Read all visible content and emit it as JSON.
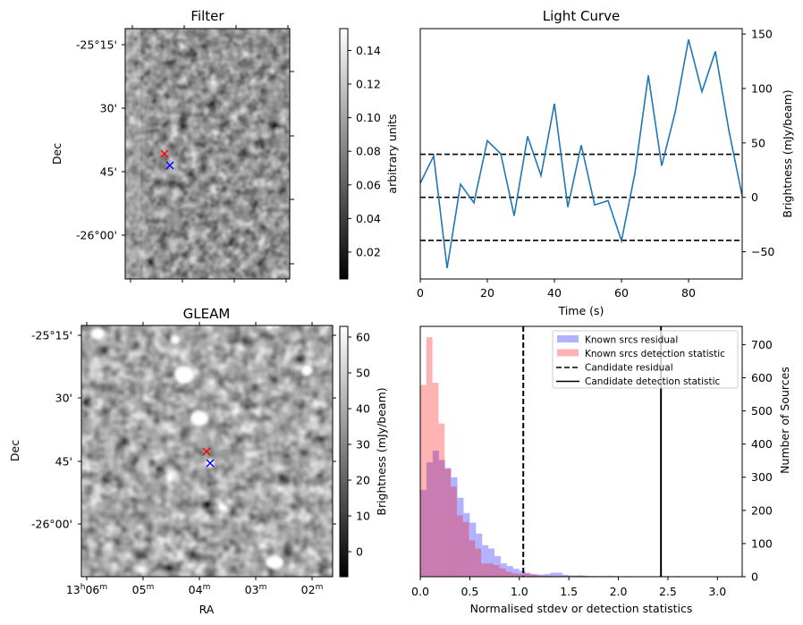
{
  "chart_data": [
    {
      "type": "heatmap",
      "panel": "filter",
      "title": "Filter",
      "xlabel": "",
      "ylabel": "Dec",
      "yticks": [
        "-25°15'",
        "30'",
        "45'",
        "-26°00'"
      ],
      "colormap": "gray",
      "colorbar": {
        "label": "arbitrary units",
        "range": [
          0.004,
          0.153
        ],
        "ticks": [
          0.02,
          0.04,
          0.06,
          0.08,
          0.1,
          0.12,
          0.14
        ],
        "tick_labels": [
          "0.02",
          "0.04",
          "0.06",
          "0.08",
          "0.10",
          "0.12",
          "0.14"
        ]
      },
      "markers": [
        {
          "name": "red-x",
          "color": "#ff0000",
          "symbol": "x"
        },
        {
          "name": "blue-x",
          "color": "#0000ff",
          "symbol": "x"
        }
      ]
    },
    {
      "type": "line",
      "panel": "light-curve",
      "title": "Light Curve",
      "xlabel": "Time (s)",
      "ylabel": "Brightness (mJy/beam)",
      "xlim": [
        0,
        96
      ],
      "ylim": [
        -75,
        155
      ],
      "xticks": [
        0,
        20,
        40,
        60,
        80
      ],
      "yticks": [
        -50,
        0,
        50,
        100,
        150
      ],
      "ytick_labels": [
        "−50",
        "0",
        "50",
        "100",
        "150"
      ],
      "line_color": "#1f77b4",
      "x": [
        0,
        4,
        8,
        12,
        16,
        20,
        24,
        28,
        32,
        36,
        40,
        44,
        48,
        52,
        56,
        60,
        64,
        68,
        72,
        76,
        80,
        84,
        88,
        92,
        96
      ],
      "series": [
        {
          "name": "light curve",
          "values": [
            13,
            38,
            -65,
            12,
            -5,
            52,
            40,
            -17,
            56,
            20,
            86,
            -9,
            48,
            -7,
            -3,
            -40,
            22,
            112,
            29,
            78,
            145,
            97,
            134,
            62,
            1
          ]
        }
      ],
      "hlines": [
        {
          "y": 39.5,
          "style": "dashed",
          "color": "#000000"
        },
        {
          "y": 0,
          "style": "dashed",
          "color": "#000000"
        },
        {
          "y": -39.5,
          "style": "dashed",
          "color": "#000000"
        }
      ]
    },
    {
      "type": "heatmap",
      "panel": "gleam",
      "title": "GLEAM",
      "xlabel": "RA",
      "ylabel": "Dec",
      "xticks": [
        "13h06m",
        "05m",
        "04m",
        "03m",
        "02m"
      ],
      "yticks": [
        "-25°15'",
        "30'",
        "45'",
        "-26°00'"
      ],
      "colormap": "gray",
      "colorbar": {
        "label": "Brightness (mJy/beam)",
        "range": [
          -7,
          63
        ],
        "ticks": [
          0,
          10,
          20,
          30,
          40,
          50,
          60
        ],
        "tick_labels": [
          "0",
          "10",
          "20",
          "30",
          "40",
          "50",
          "60"
        ]
      },
      "markers": [
        {
          "name": "red-x",
          "color": "#ff0000",
          "symbol": "x"
        },
        {
          "name": "blue-x",
          "color": "#0000ff",
          "symbol": "x"
        }
      ]
    },
    {
      "type": "bar",
      "panel": "histogram",
      "title": "",
      "xlabel": "Normalised stdev or detection statistics",
      "ylabel": "Number of Sources",
      "xlim": [
        0,
        3.25
      ],
      "ylim": [
        0,
        755
      ],
      "xticks": [
        0.0,
        0.5,
        1.0,
        1.5,
        2.0,
        2.5,
        3.0
      ],
      "xtick_labels": [
        "0.0",
        "0.5",
        "1.0",
        "1.5",
        "2.0",
        "2.5",
        "3.0"
      ],
      "yticks": [
        0,
        100,
        200,
        300,
        400,
        500,
        600,
        700
      ],
      "series": [
        {
          "name": "Known srcs residual",
          "color": "#0000ff",
          "alpha": 0.3,
          "bin_start": 0.0,
          "bin_width": 0.0625,
          "values": [
            262,
            345,
            380,
            352,
            328,
            300,
            238,
            192,
            163,
            130,
            95,
            85,
            62,
            40,
            32,
            24,
            18,
            10,
            8,
            6,
            8,
            12,
            12,
            6,
            4,
            4,
            3,
            2,
            2,
            2,
            3,
            2,
            1,
            2,
            1,
            1,
            1,
            1,
            1,
            1,
            1,
            2,
            1,
            1,
            0,
            0,
            0,
            0,
            0,
            0
          ]
        },
        {
          "name": "Known srcs detection statistic",
          "color": "#ff0000",
          "alpha": 0.3,
          "bin_start": 0.0,
          "bin_width": 0.0615,
          "values": [
            578,
            722,
            585,
            462,
            325,
            272,
            185,
            165,
            110,
            85,
            40,
            40,
            35,
            25,
            15,
            10,
            8,
            12,
            6,
            4,
            3,
            3,
            2,
            3,
            2,
            2,
            4,
            2,
            2,
            1,
            1,
            1,
            1,
            1,
            1,
            1,
            1,
            1,
            0,
            2,
            2,
            0,
            0,
            0,
            0,
            0,
            0,
            0,
            0,
            0,
            2
          ]
        }
      ],
      "vlines": [
        {
          "name": "Candidate residual",
          "x": 1.04,
          "style": "dashed",
          "color": "#000000"
        },
        {
          "name": "Candidate detection statistic",
          "x": 2.43,
          "style": "solid",
          "color": "#000000"
        }
      ],
      "legend": {
        "placement": "top-right",
        "entries": [
          {
            "label": "Known srcs residual",
            "kind": "patch",
            "color": "#0000ff"
          },
          {
            "label": "Known srcs detection statistic",
            "kind": "patch",
            "color": "#ff0000"
          },
          {
            "label": "Candidate residual",
            "kind": "dashed"
          },
          {
            "label": "Candidate detection statistic",
            "kind": "solid"
          }
        ]
      }
    }
  ]
}
